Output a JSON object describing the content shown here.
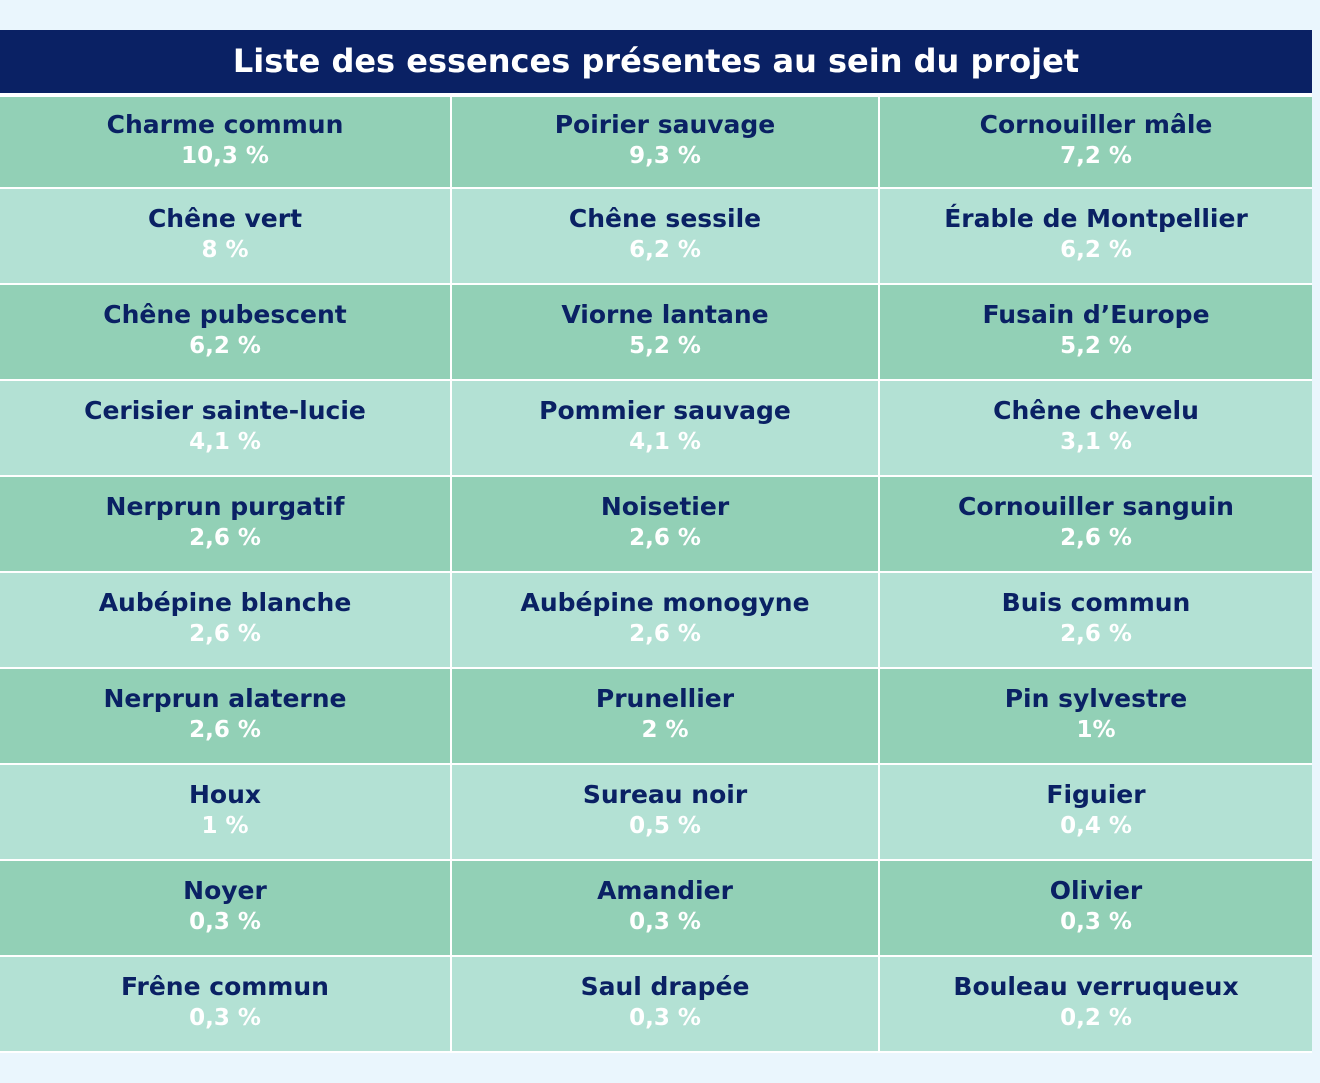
{
  "title": "Liste des essences présentes au sein du projet",
  "rows": [
    [
      {
        "name": "Charme commun",
        "percent": "10,3 %"
      },
      {
        "name": "Poirier sauvage",
        "percent": "9,3 %"
      },
      {
        "name": "Cornouiller mâle",
        "percent": "7,2 %"
      }
    ],
    [
      {
        "name": "Chêne vert",
        "percent": "8 %"
      },
      {
        "name": "Chêne sessile",
        "percent": "6,2 %"
      },
      {
        "name": "Érable de Montpellier",
        "percent": "6,2 %"
      }
    ],
    [
      {
        "name": "Chêne pubescent",
        "percent": "6,2 %"
      },
      {
        "name": "Viorne lantane",
        "percent": "5,2 %"
      },
      {
        "name": "Fusain d’Europe",
        "percent": "5,2 %"
      }
    ],
    [
      {
        "name": "Cerisier sainte-lucie",
        "percent": "4,1 %"
      },
      {
        "name": "Pommier sauvage",
        "percent": "4,1 %"
      },
      {
        "name": "Chêne chevelu",
        "percent": "3,1 %"
      }
    ],
    [
      {
        "name": "Nerprun purgatif",
        "percent": "2,6 %"
      },
      {
        "name": "Noisetier",
        "percent": "2,6 %"
      },
      {
        "name": "Cornouiller sanguin",
        "percent": "2,6 %"
      }
    ],
    [
      {
        "name": "Aubépine blanche",
        "percent": "2,6 %"
      },
      {
        "name": "Aubépine monogyne",
        "percent": "2,6 %"
      },
      {
        "name": "Buis commun",
        "percent": "2,6 %"
      }
    ],
    [
      {
        "name": "Nerprun alaterne",
        "percent": "2,6 %"
      },
      {
        "name": "Prunellier",
        "percent": "2 %"
      },
      {
        "name": "Pin sylvestre",
        "percent": "1%"
      }
    ],
    [
      {
        "name": "Houx",
        "percent": "1 %"
      },
      {
        "name": "Sureau noir",
        "percent": "0,5 %"
      },
      {
        "name": "Figuier",
        "percent": "0,4 %"
      }
    ],
    [
      {
        "name": "Noyer",
        "percent": "0,3 %"
      },
      {
        "name": "Amandier",
        "percent": "0,3 %"
      },
      {
        "name": "Olivier",
        "percent": "0,3 %"
      }
    ],
    [
      {
        "name": "Frêne commun",
        "percent": "0,3 %"
      },
      {
        "name": "Saul drapée",
        "percent": "0,3 %"
      },
      {
        "name": "Bouleau verruqueux",
        "percent": "0,2 %"
      }
    ]
  ],
  "colors": {
    "header_bg": "#0a2164",
    "header_text": "#ffffff",
    "row_dark": "#92d0b6",
    "row_light": "#b3e1d4",
    "name_text": "#0a2164",
    "percent_text": "#ffffff"
  }
}
